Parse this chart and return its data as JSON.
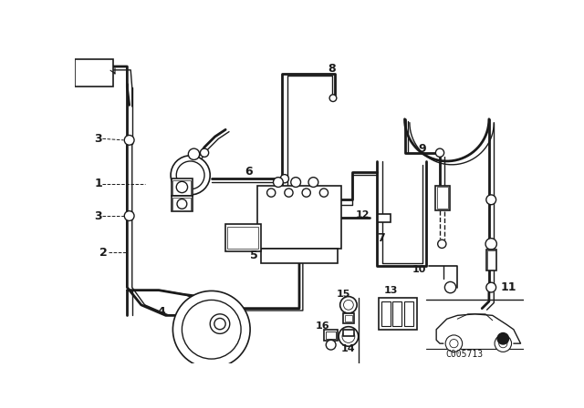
{
  "bg_color": "#ffffff",
  "line_color": "#1a1a1a",
  "fig_width": 6.4,
  "fig_height": 4.48,
  "dpi": 100,
  "code_text": "C005713"
}
